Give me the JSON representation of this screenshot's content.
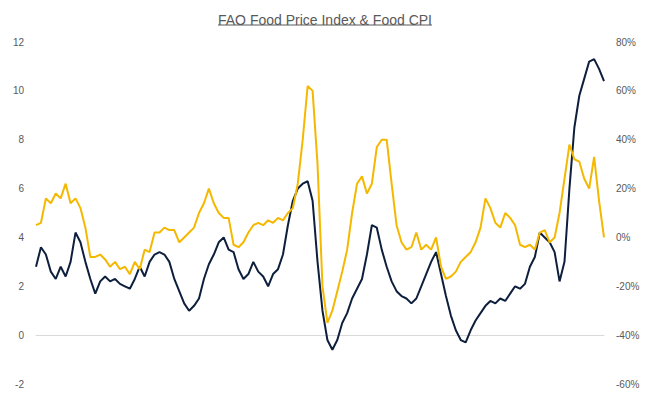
{
  "chart_data": {
    "type": "line",
    "title": "FAO Food Price Index & Food CPI",
    "categories": [
      null,
      null,
      null,
      null,
      null,
      null,
      null,
      null,
      null,
      null,
      null,
      null,
      null,
      null,
      null,
      null,
      null,
      null,
      null,
      null,
      null,
      null,
      null,
      null,
      null,
      null,
      null,
      null,
      null,
      null,
      null,
      null,
      null,
      null,
      null,
      null,
      null,
      null,
      null,
      null,
      null,
      null,
      null,
      null,
      null,
      null,
      null,
      null,
      null,
      null,
      null,
      null,
      null,
      null,
      null,
      null,
      null,
      null,
      null,
      null,
      null,
      null,
      null,
      null,
      null,
      null,
      null,
      null,
      null,
      null,
      null,
      null,
      null,
      null,
      null,
      null,
      null,
      null,
      null,
      null,
      null,
      null,
      null,
      null,
      null,
      null,
      null,
      null,
      null,
      null,
      null,
      null,
      null,
      null,
      null,
      null,
      null,
      null,
      null,
      null,
      null,
      null,
      null,
      null,
      null,
      null,
      null,
      null,
      null,
      null,
      null,
      null,
      null,
      null,
      null,
      null
    ],
    "series": [
      {
        "color": "#0d1f3c",
        "axis": "y",
        "values": [
          2.8,
          3.6,
          3.3,
          2.6,
          2.3,
          2.8,
          2.4,
          3.0,
          4.2,
          3.8,
          3.0,
          2.3,
          1.7,
          2.2,
          2.4,
          2.2,
          2.3,
          2.1,
          2.0,
          1.9,
          2.3,
          2.8,
          2.4,
          3.0,
          3.3,
          3.4,
          3.3,
          3.0,
          2.3,
          1.8,
          1.3,
          1.0,
          1.2,
          1.5,
          2.3,
          2.9,
          3.3,
          3.8,
          4.0,
          3.5,
          3.4,
          2.7,
          2.3,
          2.5,
          3.0,
          2.6,
          2.4,
          2.0,
          2.5,
          2.7,
          3.3,
          4.5,
          5.5,
          6.0,
          6.2,
          6.3,
          5.5,
          3.0,
          1.0,
          -0.2,
          -0.6,
          -0.2,
          0.5,
          0.9,
          1.5,
          1.9,
          2.3,
          3.3,
          4.5,
          4.4,
          3.5,
          2.8,
          2.2,
          1.8,
          1.6,
          1.5,
          1.3,
          1.5,
          2.0,
          2.5,
          3.0,
          3.4,
          2.5,
          1.6,
          0.8,
          0.2,
          -0.2,
          -0.3,
          0.2,
          0.6,
          0.9,
          1.2,
          1.4,
          1.3,
          1.5,
          1.4,
          1.7,
          2.0,
          1.9,
          2.1,
          2.8,
          3.2,
          4.2,
          4.0,
          3.8,
          3.4,
          2.2,
          3.0,
          6.0,
          8.5,
          9.8,
          10.5,
          11.2,
          11.3,
          10.9,
          10.4
        ]
      },
      {
        "color": "#f5b800",
        "axis": "y2",
        "values": [
          5,
          6,
          16,
          14,
          18,
          16,
          22,
          14,
          16,
          12,
          4,
          -8,
          -8,
          -7,
          -9,
          -12,
          -10,
          -13,
          -12,
          -15,
          -10,
          -13,
          -5,
          -6,
          2,
          2,
          4,
          3,
          3,
          -2,
          0,
          2,
          4,
          10,
          14,
          20,
          14,
          10,
          8,
          8,
          -3,
          -4,
          -2,
          2,
          5,
          6,
          5,
          7,
          6,
          8,
          7,
          10,
          12,
          22,
          40,
          62,
          60,
          30,
          -20,
          -35,
          -30,
          -22,
          -14,
          -5,
          10,
          22,
          25,
          18,
          22,
          37,
          40,
          40,
          22,
          5,
          -2,
          -5,
          -4,
          2,
          -5,
          -3,
          -5,
          0,
          -12,
          -17,
          -16,
          -14,
          -10,
          -8,
          -6,
          -2,
          4,
          16,
          12,
          6,
          4,
          10,
          8,
          5,
          -3,
          -4,
          -3,
          -5,
          2,
          3,
          -2,
          0,
          10,
          24,
          38,
          32,
          31,
          24,
          20,
          33,
          15,
          0
        ]
      }
    ],
    "ylim": [
      -2,
      12
    ],
    "yticks": [
      -2,
      0,
      2,
      4,
      6,
      8,
      10,
      12
    ],
    "y2lim": [
      -60,
      80
    ],
    "y2ticks": [
      {
        "value": -60,
        "label": "-60%"
      },
      {
        "value": -40,
        "label": "-40%"
      },
      {
        "value": -20,
        "label": "-20%"
      },
      {
        "value": 0,
        "label": "0%"
      },
      {
        "value": 20,
        "label": "20%"
      },
      {
        "value": 40,
        "label": "40%"
      },
      {
        "value": 60,
        "label": "60%"
      },
      {
        "value": 80,
        "label": "80%"
      }
    ],
    "grid": false,
    "tick_labels": "y"
  }
}
